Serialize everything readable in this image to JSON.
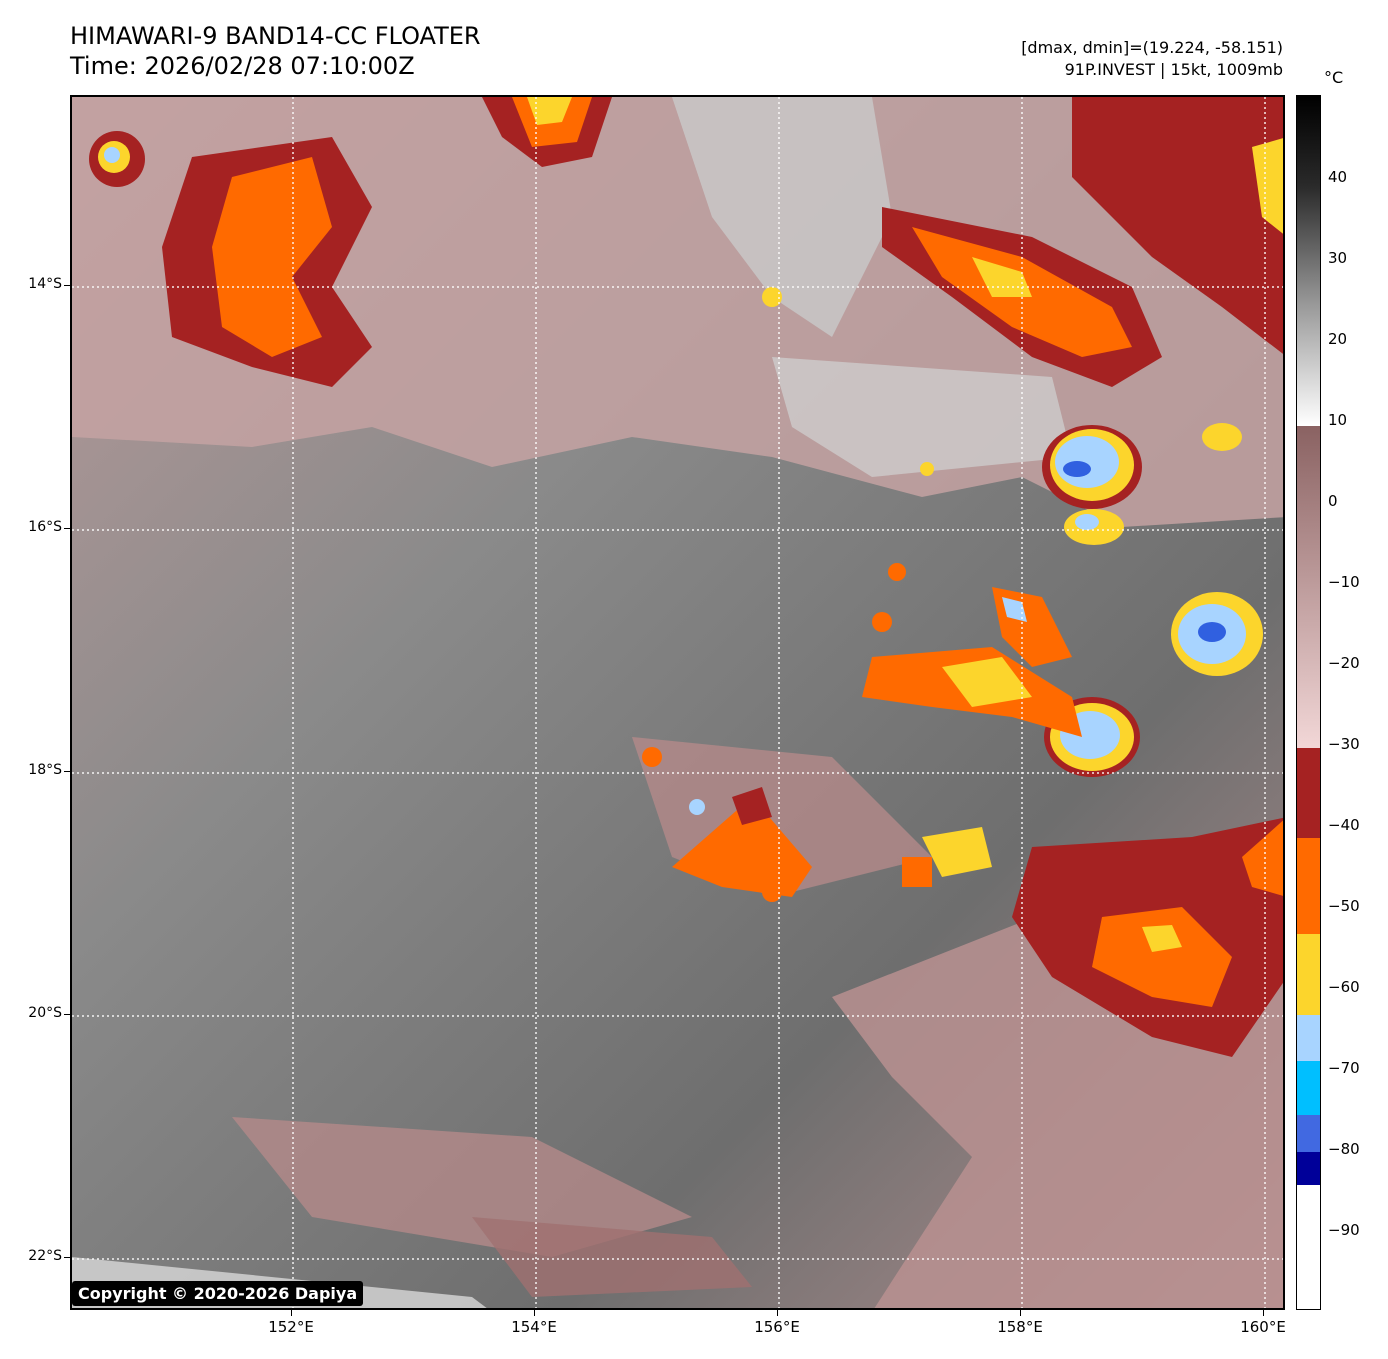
{
  "header": {
    "title_line1": "HIMAWARI-9 BAND14-CC FLOATER",
    "title_line2": "Time: 2026/02/28 07:10:00Z",
    "range_text": "[dmax, dmin]=(19.224, -58.151)",
    "storm_text": "91P.INVEST | 15kt, 1009mb"
  },
  "map": {
    "lat_labels": [
      "14°S",
      "16°S",
      "18°S",
      "20°S",
      "22°S"
    ],
    "lon_labels": [
      "152°E",
      "154°E",
      "156°E",
      "158°E",
      "160°E"
    ],
    "copyright": "Copyright © 2020-2026 Dapiya",
    "colors": {
      "gray_base": "#7a7a7a",
      "light_gray": "#c9c9c9",
      "pink_light": "#e6c6c6",
      "mauve": "#9e7070",
      "dark_red": "#a52222",
      "orange": "#ff6a00",
      "yellow": "#fcd52c",
      "light_blue": "#a8d4ff",
      "cyan": "#00bfff",
      "blue": "#3060e0"
    }
  },
  "colorbar": {
    "unit": "°C",
    "tick_labels": [
      "40",
      "30",
      "20",
      "10",
      "0",
      "−10",
      "−20",
      "−30",
      "−40",
      "−50",
      "−60",
      "−70",
      "−80",
      "−90"
    ],
    "segment_colors": [
      "#000000",
      "#9a9a9a",
      "#ffffff",
      "#8a6262",
      "#f2d7d7",
      "#a52222",
      "#ff6a00",
      "#fcd52c",
      "#a8d4ff",
      "#00bfff",
      "#4169e1",
      "#000099",
      "#ffffff"
    ]
  }
}
